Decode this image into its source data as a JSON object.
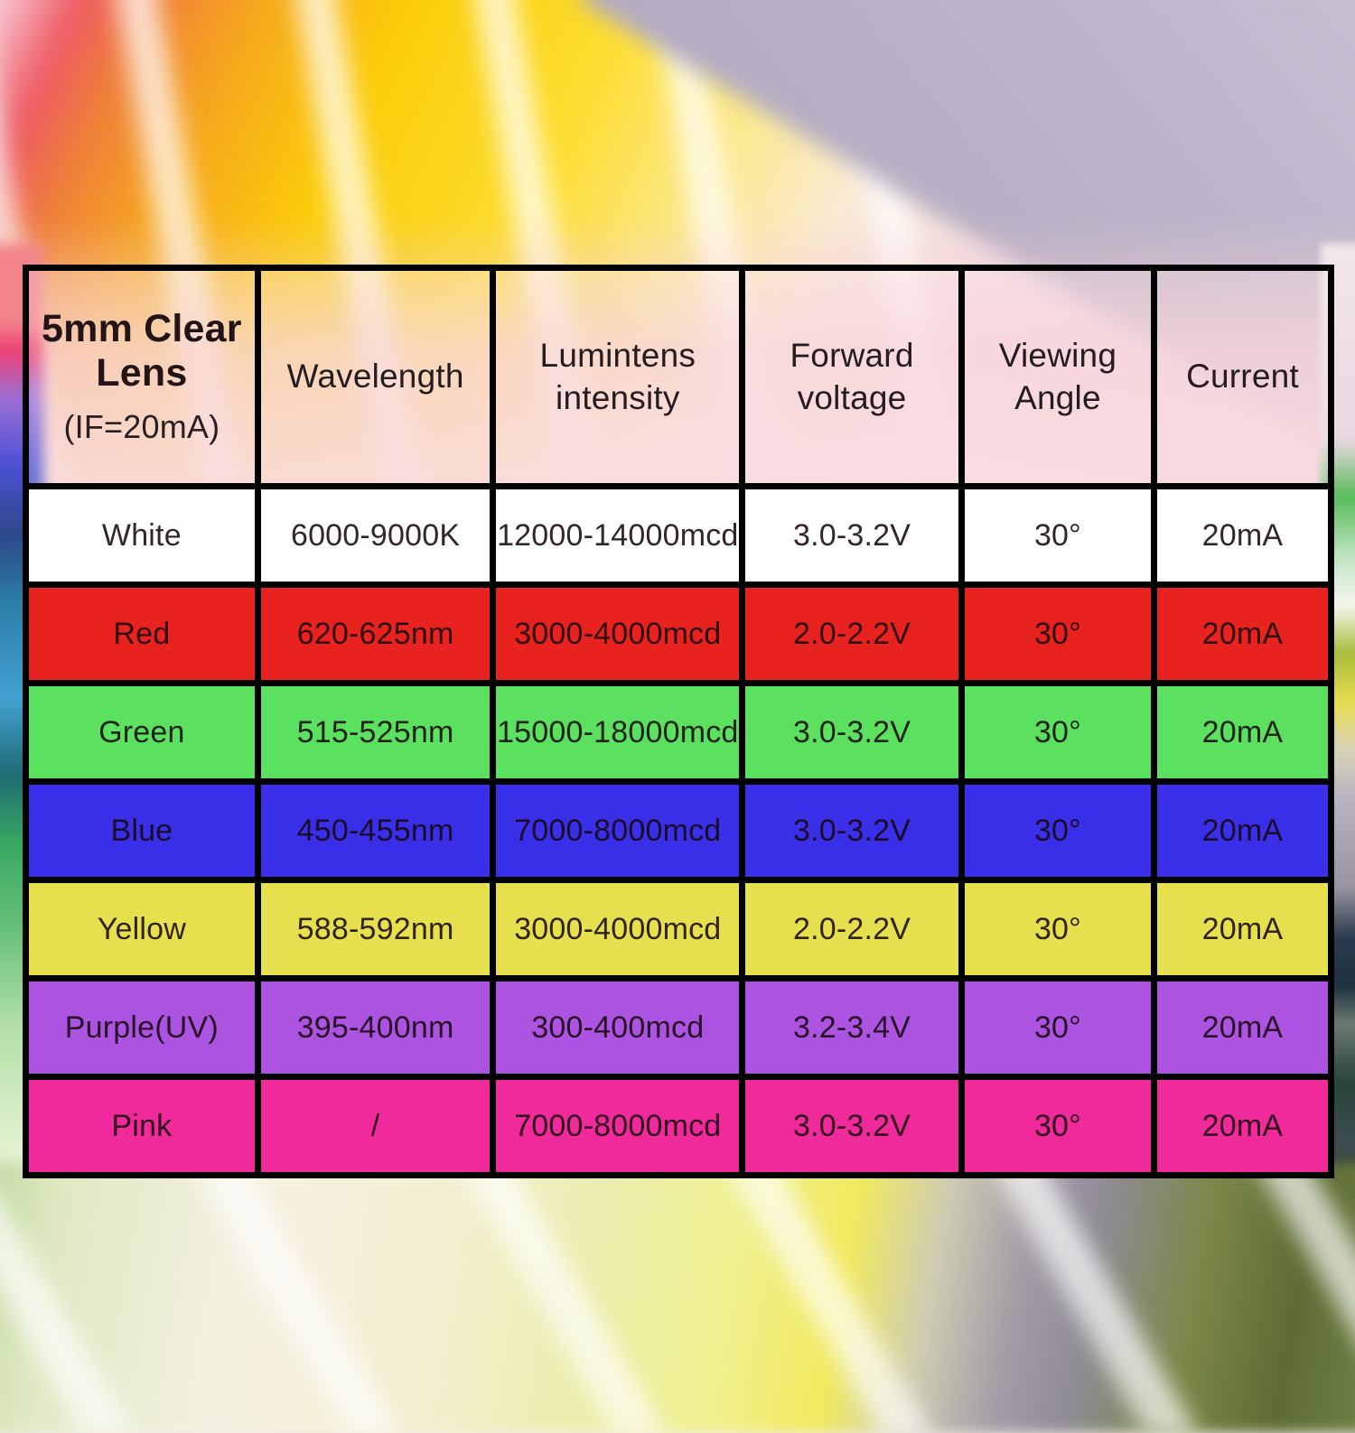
{
  "table": {
    "corner": {
      "title": "5mm Clear Lens",
      "subtitle": "(IF=20mA)"
    },
    "columns": [
      "Wavelength",
      "Lumintens intensity",
      "Forward voltage",
      "Viewing Angle",
      "Current"
    ],
    "border_color": "#000000",
    "rows": [
      {
        "name": "White",
        "wavelength": "6000-9000K",
        "intensity": "12000-14000mcd",
        "voltage": "3.0-3.2V",
        "angle": "30°",
        "current": "20mA",
        "bg": "#ffffff"
      },
      {
        "name": "Red",
        "wavelength": "620-625nm",
        "intensity": "3000-4000mcd",
        "voltage": "2.0-2.2V",
        "angle": "30°",
        "current": "20mA",
        "bg": "#e8231f"
      },
      {
        "name": "Green",
        "wavelength": "515-525nm",
        "intensity": "15000-18000mcd",
        "voltage": "3.0-3.2V",
        "angle": "30°",
        "current": "20mA",
        "bg": "#5ce05f"
      },
      {
        "name": "Blue",
        "wavelength": "450-455nm",
        "intensity": "7000-8000mcd",
        "voltage": "3.0-3.2V",
        "angle": "30°",
        "current": "20mA",
        "bg": "#3a2fe9"
      },
      {
        "name": "Yellow",
        "wavelength": "588-592nm",
        "intensity": "3000-4000mcd",
        "voltage": "2.0-2.2V",
        "angle": "30°",
        "current": "20mA",
        "bg": "#e7e04e"
      },
      {
        "name": "Purple(UV)",
        "wavelength": "395-400nm",
        "intensity": "300-400mcd",
        "voltage": "3.2-3.4V",
        "angle": "30°",
        "current": "20mA",
        "bg": "#ad53e2"
      },
      {
        "name": "Pink",
        "wavelength": "/",
        "intensity": "7000-8000mcd",
        "voltage": "3.0-3.2V",
        "angle": "30°",
        "current": "20mA",
        "bg": "#f12a9c"
      }
    ]
  }
}
